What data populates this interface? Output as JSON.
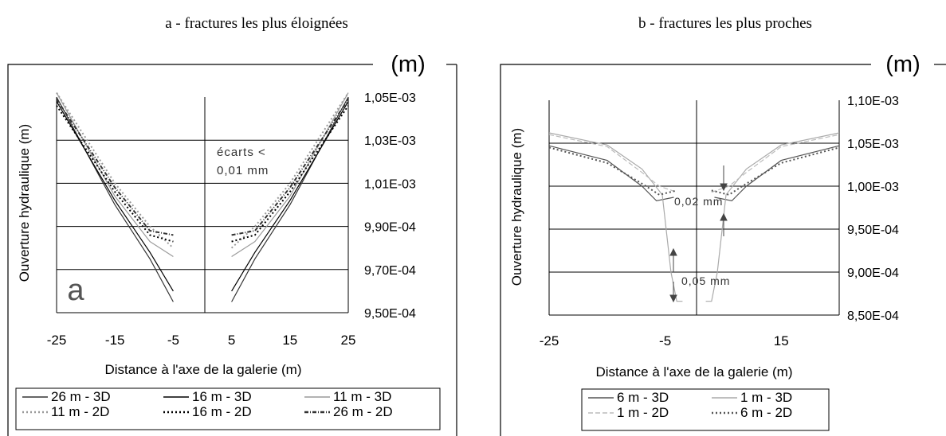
{
  "panels": [
    {
      "caption": "a - fractures les plus éloignées",
      "unit": "(m)",
      "letter": "a",
      "annotations": [
        "écarts <",
        "0,01 mm"
      ],
      "legend": [
        "26 m - 3D",
        "16 m - 3D",
        "11 m - 3D",
        "11 m - 2D",
        "16 m - 2D",
        "26 m - 2D"
      ]
    },
    {
      "caption": "b - fractures les plus proches",
      "unit": "(m)",
      "annotations": [
        "0,02 mm",
        "0,05 mm"
      ],
      "legend": [
        "6 m - 3D",
        "1 m - 3D",
        "1 m - 2D",
        "6 m - 2D"
      ]
    }
  ],
  "chart_data": [
    {
      "type": "line",
      "title": "a - fractures les plus éloignées",
      "xlabel": "Distance à l'axe de la galerie (m)",
      "ylabel": "Ouverture hydraulique (m)",
      "xlim": [
        -25,
        25
      ],
      "ylim": [
        0.00095,
        0.00105
      ],
      "xticks": [
        "-25",
        "-15",
        "-5",
        "5",
        "15",
        "25"
      ],
      "yticks": [
        "9,50E-04",
        "9,70E-04",
        "9,90E-04",
        "1,01E-03",
        "1,03E-03",
        "1,05E-03"
      ],
      "yaxis_side": "right",
      "grid": "horizontal",
      "legend_position": "bottom",
      "series": [
        {
          "name": "26 m - 3D",
          "color": "#333333",
          "dash": "solid",
          "points": [
            [
              -25,
              0.00105
            ],
            [
              -15,
              0.001
            ],
            [
              -9,
              0.000975
            ],
            [
              -5,
              0.000955
            ],
            [
              5,
              0.000955
            ],
            [
              9,
              0.000975
            ],
            [
              15,
              0.001
            ],
            [
              25,
              0.00105
            ]
          ]
        },
        {
          "name": "16 m - 3D",
          "color": "#000000",
          "dash": "solid",
          "points": [
            [
              -25,
              0.001048
            ],
            [
              -15,
              0.001002
            ],
            [
              -9,
              0.000978
            ],
            [
              -5,
              0.00096
            ],
            [
              5,
              0.00096
            ],
            [
              9,
              0.000978
            ],
            [
              15,
              0.001002
            ],
            [
              25,
              0.001048
            ]
          ]
        },
        {
          "name": "11 m - 3D",
          "color": "#9a9a9a",
          "dash": "solid",
          "points": [
            [
              -25,
              0.001052
            ],
            [
              -15,
              0.001004
            ],
            [
              -9,
              0.000983
            ],
            [
              -5,
              0.000976
            ],
            [
              5,
              0.000976
            ],
            [
              9,
              0.000983
            ],
            [
              15,
              0.001004
            ],
            [
              25,
              0.001052
            ]
          ]
        },
        {
          "name": "11 m - 2D",
          "color": "#9a9a9a",
          "dash": "dot",
          "points": [
            [
              -25,
              0.001052
            ],
            [
              -15,
              0.00101
            ],
            [
              -9,
              0.00099
            ],
            [
              -5,
              0.00098
            ],
            [
              5,
              0.00098
            ],
            [
              9,
              0.00099
            ],
            [
              15,
              0.00101
            ],
            [
              25,
              0.001052
            ]
          ]
        },
        {
          "name": "16 m - 2D",
          "color": "#000000",
          "dash": "dot",
          "points": [
            [
              -25,
              0.001046
            ],
            [
              -15,
              0.001006
            ],
            [
              -9,
              0.000986
            ],
            [
              -5,
              0.000983
            ],
            [
              5,
              0.000983
            ],
            [
              9,
              0.000986
            ],
            [
              15,
              0.001006
            ],
            [
              25,
              0.001046
            ]
          ]
        },
        {
          "name": "26 m - 2D",
          "color": "#333333",
          "dash": "dashdot",
          "points": [
            [
              -25,
              0.001049
            ],
            [
              -15,
              0.001008
            ],
            [
              -9,
              0.000988
            ],
            [
              -5,
              0.000986
            ],
            [
              5,
              0.000986
            ],
            [
              9,
              0.000988
            ],
            [
              15,
              0.001008
            ],
            [
              25,
              0.001049
            ]
          ]
        }
      ]
    },
    {
      "type": "line",
      "title": "b - fractures les plus proches",
      "xlabel": "Distance à l'axe de la galerie (m)",
      "ylabel": "Ouverture hydraulique (m)",
      "xlim": [
        -25,
        25
      ],
      "ylim": [
        0.00085,
        0.0011
      ],
      "xticks": [
        "-25",
        "-5",
        "15"
      ],
      "yticks": [
        "8,50E-04",
        "9,00E-04",
        "9,50E-04",
        "1,00E-03",
        "1,05E-03",
        "1,10E-03"
      ],
      "yaxis_side": "right",
      "grid": "horizontal",
      "legend_position": "bottom",
      "series": [
        {
          "name": "6 m - 3D",
          "color": "#555555",
          "dash": "solid",
          "points": [
            [
              -25,
              0.001047
            ],
            [
              -15,
              0.00103
            ],
            [
              -9,
              0.001
            ],
            [
              -6.5,
              0.000983
            ],
            [
              -3.5,
              0.000987
            ],
            [
              3.5,
              0.000987
            ],
            [
              6.5,
              0.000983
            ],
            [
              9,
              0.001
            ],
            [
              15,
              0.00103
            ],
            [
              25,
              0.001047
            ]
          ]
        },
        {
          "name": "1 m - 3D",
          "color": "#aaaaaa",
          "dash": "solid",
          "points": [
            [
              -25,
              0.001062
            ],
            [
              -15,
              0.001048
            ],
            [
              -9,
              0.00102
            ],
            [
              -5.5,
              0.00099
            ],
            [
              -4,
              0.0009
            ],
            [
              -3,
              0.000866
            ],
            [
              -2,
              0.000866
            ],
            [
              2,
              0.000866
            ],
            [
              3,
              0.000866
            ],
            [
              4,
              0.0009
            ],
            [
              5.5,
              0.00099
            ],
            [
              9,
              0.00102
            ],
            [
              15,
              0.001048
            ],
            [
              25,
              0.001062
            ]
          ]
        },
        {
          "name": "1 m - 2D",
          "color": "#bbbbbb",
          "dash": "dash",
          "points": [
            [
              -25,
              0.00106
            ],
            [
              -15,
              0.001046
            ],
            [
              -9,
              0.001016
            ],
            [
              -6,
              0.001
            ],
            [
              -3,
              0.000993
            ],
            [
              3,
              0.000993
            ],
            [
              6,
              0.001
            ],
            [
              9,
              0.001016
            ],
            [
              15,
              0.001046
            ],
            [
              25,
              0.00106
            ]
          ]
        },
        {
          "name": "6 m - 2D",
          "color": "#555555",
          "dash": "dot",
          "points": [
            [
              -25,
              0.001045
            ],
            [
              -15,
              0.001027
            ],
            [
              -9,
              0.001003
            ],
            [
              -6,
              0.00099
            ],
            [
              -3,
              0.000995
            ],
            [
              3,
              0.000995
            ],
            [
              6,
              0.00099
            ],
            [
              9,
              0.001003
            ],
            [
              15,
              0.001027
            ],
            [
              25,
              0.001045
            ]
          ]
        }
      ]
    }
  ]
}
